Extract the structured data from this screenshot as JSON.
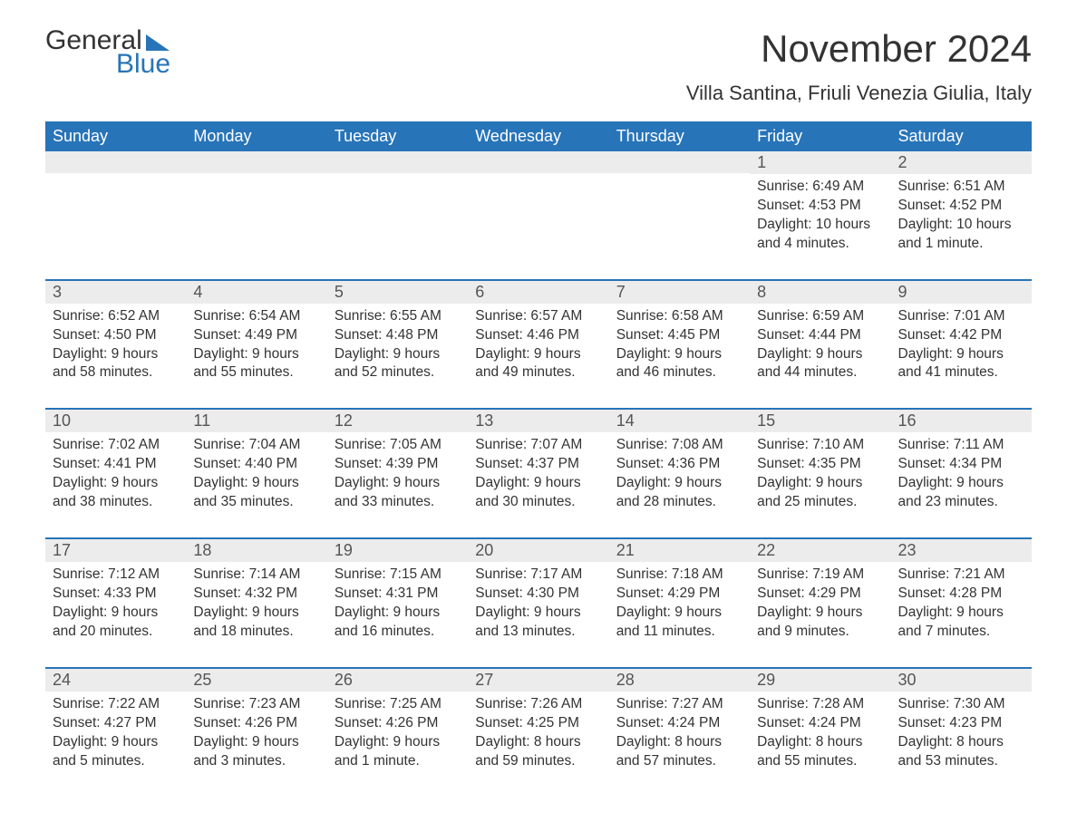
{
  "logo": {
    "word1": "General",
    "word2": "Blue"
  },
  "title": "November 2024",
  "location": "Villa Santina, Friuli Venezia Giulia, Italy",
  "colors": {
    "brand_blue": "#2874b8",
    "header_row_bg": "#ececec",
    "text": "#333333",
    "background": "#ffffff"
  },
  "typography": {
    "title_fontsize": 42,
    "location_fontsize": 22,
    "dayhead_fontsize": 18,
    "daynum_fontsize": 18,
    "body_fontsize": 15.5
  },
  "day_headers": [
    "Sunday",
    "Monday",
    "Tuesday",
    "Wednesday",
    "Thursday",
    "Friday",
    "Saturday"
  ],
  "weeks": [
    [
      {
        "blank": true
      },
      {
        "blank": true
      },
      {
        "blank": true
      },
      {
        "blank": true
      },
      {
        "blank": true
      },
      {
        "num": "1",
        "sunrise": "Sunrise: 6:49 AM",
        "sunset": "Sunset: 4:53 PM",
        "daylight": "Daylight: 10 hours and 4 minutes."
      },
      {
        "num": "2",
        "sunrise": "Sunrise: 6:51 AM",
        "sunset": "Sunset: 4:52 PM",
        "daylight": "Daylight: 10 hours and 1 minute."
      }
    ],
    [
      {
        "num": "3",
        "sunrise": "Sunrise: 6:52 AM",
        "sunset": "Sunset: 4:50 PM",
        "daylight": "Daylight: 9 hours and 58 minutes."
      },
      {
        "num": "4",
        "sunrise": "Sunrise: 6:54 AM",
        "sunset": "Sunset: 4:49 PM",
        "daylight": "Daylight: 9 hours and 55 minutes."
      },
      {
        "num": "5",
        "sunrise": "Sunrise: 6:55 AM",
        "sunset": "Sunset: 4:48 PM",
        "daylight": "Daylight: 9 hours and 52 minutes."
      },
      {
        "num": "6",
        "sunrise": "Sunrise: 6:57 AM",
        "sunset": "Sunset: 4:46 PM",
        "daylight": "Daylight: 9 hours and 49 minutes."
      },
      {
        "num": "7",
        "sunrise": "Sunrise: 6:58 AM",
        "sunset": "Sunset: 4:45 PM",
        "daylight": "Daylight: 9 hours and 46 minutes."
      },
      {
        "num": "8",
        "sunrise": "Sunrise: 6:59 AM",
        "sunset": "Sunset: 4:44 PM",
        "daylight": "Daylight: 9 hours and 44 minutes."
      },
      {
        "num": "9",
        "sunrise": "Sunrise: 7:01 AM",
        "sunset": "Sunset: 4:42 PM",
        "daylight": "Daylight: 9 hours and 41 minutes."
      }
    ],
    [
      {
        "num": "10",
        "sunrise": "Sunrise: 7:02 AM",
        "sunset": "Sunset: 4:41 PM",
        "daylight": "Daylight: 9 hours and 38 minutes."
      },
      {
        "num": "11",
        "sunrise": "Sunrise: 7:04 AM",
        "sunset": "Sunset: 4:40 PM",
        "daylight": "Daylight: 9 hours and 35 minutes."
      },
      {
        "num": "12",
        "sunrise": "Sunrise: 7:05 AM",
        "sunset": "Sunset: 4:39 PM",
        "daylight": "Daylight: 9 hours and 33 minutes."
      },
      {
        "num": "13",
        "sunrise": "Sunrise: 7:07 AM",
        "sunset": "Sunset: 4:37 PM",
        "daylight": "Daylight: 9 hours and 30 minutes."
      },
      {
        "num": "14",
        "sunrise": "Sunrise: 7:08 AM",
        "sunset": "Sunset: 4:36 PM",
        "daylight": "Daylight: 9 hours and 28 minutes."
      },
      {
        "num": "15",
        "sunrise": "Sunrise: 7:10 AM",
        "sunset": "Sunset: 4:35 PM",
        "daylight": "Daylight: 9 hours and 25 minutes."
      },
      {
        "num": "16",
        "sunrise": "Sunrise: 7:11 AM",
        "sunset": "Sunset: 4:34 PM",
        "daylight": "Daylight: 9 hours and 23 minutes."
      }
    ],
    [
      {
        "num": "17",
        "sunrise": "Sunrise: 7:12 AM",
        "sunset": "Sunset: 4:33 PM",
        "daylight": "Daylight: 9 hours and 20 minutes."
      },
      {
        "num": "18",
        "sunrise": "Sunrise: 7:14 AM",
        "sunset": "Sunset: 4:32 PM",
        "daylight": "Daylight: 9 hours and 18 minutes."
      },
      {
        "num": "19",
        "sunrise": "Sunrise: 7:15 AM",
        "sunset": "Sunset: 4:31 PM",
        "daylight": "Daylight: 9 hours and 16 minutes."
      },
      {
        "num": "20",
        "sunrise": "Sunrise: 7:17 AM",
        "sunset": "Sunset: 4:30 PM",
        "daylight": "Daylight: 9 hours and 13 minutes."
      },
      {
        "num": "21",
        "sunrise": "Sunrise: 7:18 AM",
        "sunset": "Sunset: 4:29 PM",
        "daylight": "Daylight: 9 hours and 11 minutes."
      },
      {
        "num": "22",
        "sunrise": "Sunrise: 7:19 AM",
        "sunset": "Sunset: 4:29 PM",
        "daylight": "Daylight: 9 hours and 9 minutes."
      },
      {
        "num": "23",
        "sunrise": "Sunrise: 7:21 AM",
        "sunset": "Sunset: 4:28 PM",
        "daylight": "Daylight: 9 hours and 7 minutes."
      }
    ],
    [
      {
        "num": "24",
        "sunrise": "Sunrise: 7:22 AM",
        "sunset": "Sunset: 4:27 PM",
        "daylight": "Daylight: 9 hours and 5 minutes."
      },
      {
        "num": "25",
        "sunrise": "Sunrise: 7:23 AM",
        "sunset": "Sunset: 4:26 PM",
        "daylight": "Daylight: 9 hours and 3 minutes."
      },
      {
        "num": "26",
        "sunrise": "Sunrise: 7:25 AM",
        "sunset": "Sunset: 4:26 PM",
        "daylight": "Daylight: 9 hours and 1 minute."
      },
      {
        "num": "27",
        "sunrise": "Sunrise: 7:26 AM",
        "sunset": "Sunset: 4:25 PM",
        "daylight": "Daylight: 8 hours and 59 minutes."
      },
      {
        "num": "28",
        "sunrise": "Sunrise: 7:27 AM",
        "sunset": "Sunset: 4:24 PM",
        "daylight": "Daylight: 8 hours and 57 minutes."
      },
      {
        "num": "29",
        "sunrise": "Sunrise: 7:28 AM",
        "sunset": "Sunset: 4:24 PM",
        "daylight": "Daylight: 8 hours and 55 minutes."
      },
      {
        "num": "30",
        "sunrise": "Sunrise: 7:30 AM",
        "sunset": "Sunset: 4:23 PM",
        "daylight": "Daylight: 8 hours and 53 minutes."
      }
    ]
  ]
}
